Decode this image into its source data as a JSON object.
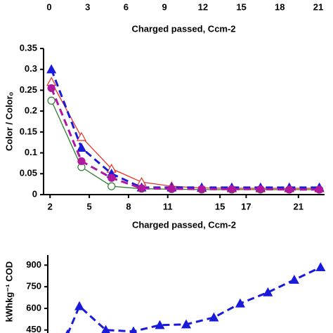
{
  "chart_data": [
    {
      "type": "axis",
      "xlabel": "Charged passed, Ccm-2",
      "xlim": [
        0,
        21
      ],
      "xticks": [
        0,
        3,
        6,
        9,
        12,
        15,
        18,
        21
      ]
    },
    {
      "type": "line",
      "xlabel": "Charged passed, Ccm-2",
      "ylabel": "Color / Colorₒ",
      "xlim": [
        1.5,
        23
      ],
      "xticks": [
        2,
        5,
        8,
        11,
        15,
        17,
        21
      ],
      "ylim": [
        0,
        0.35
      ],
      "yticks": [
        0,
        0.05,
        0.1,
        0.15,
        0.2,
        0.25,
        0.3,
        0.35
      ],
      "x": [
        2.1,
        4.4,
        6.7,
        9.0,
        11.3,
        13.6,
        15.9,
        18.1,
        20.3,
        22.6
      ],
      "series": [
        {
          "color": "#e8332a",
          "marker": "triangle",
          "filled": false,
          "dashed": false,
          "values": [
            0.27,
            0.138,
            0.062,
            0.03,
            0.02,
            0.016,
            0.015,
            0.015,
            0.015,
            0.015
          ]
        },
        {
          "color": "#2e7d2e",
          "marker": "circle",
          "filled": false,
          "dashed": false,
          "values": [
            0.225,
            0.066,
            0.02,
            0.014,
            0.013,
            0.012,
            0.012,
            0.012,
            0.012,
            0.012
          ]
        },
        {
          "color": "#1a1adb",
          "marker": "triangle",
          "filled": true,
          "dashed": true,
          "values": [
            0.3,
            0.112,
            0.05,
            0.017,
            0.017,
            0.017,
            0.017,
            0.017,
            0.017,
            0.017
          ]
        },
        {
          "color": "#b0179f",
          "marker": "circle",
          "filled": true,
          "dashed": true,
          "values": [
            0.255,
            0.08,
            0.04,
            0.015,
            0.014,
            0.013,
            0.013,
            0.013,
            0.012,
            0.012
          ]
        }
      ]
    },
    {
      "type": "line",
      "ylabel": "kWhkg⁻¹ COD",
      "xlim": [
        0,
        21
      ],
      "ylim": [
        400,
        970
      ],
      "yticks": [
        450,
        600,
        750,
        900
      ],
      "x": [
        1.5,
        2.4,
        4.4,
        6.5,
        8.5,
        10.5,
        12.6,
        14.6,
        16.7,
        18.7,
        20.7
      ],
      "series": [
        {
          "color": "#1a1adb",
          "marker": "triangle",
          "filled": true,
          "dashed": true,
          "values": [
            420,
            615,
            450,
            440,
            484,
            489,
            537,
            634,
            711,
            798,
            885
          ]
        }
      ]
    }
  ]
}
